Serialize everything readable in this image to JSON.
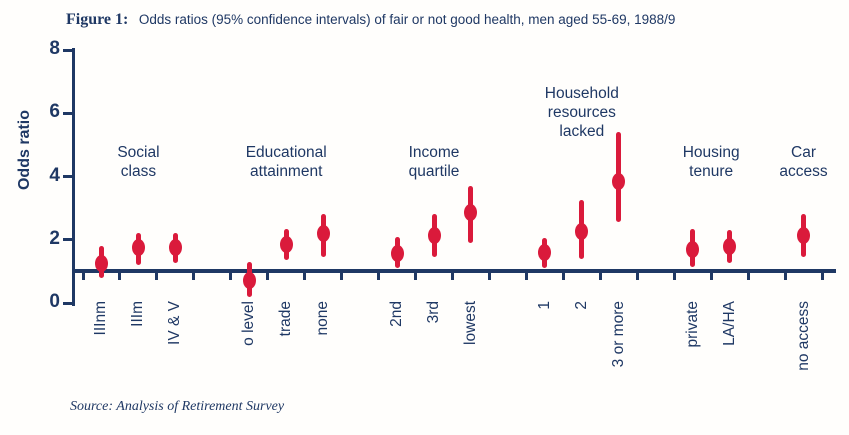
{
  "figure_label": "Figure 1:",
  "title": "Odds ratios (95% confidence intervals) of fair or not good health, men aged 55-69, 1988/9",
  "source": "Source: Analysis of Retirement Survey",
  "colors": {
    "navy": "#1f3864",
    "red": "#da1a3b"
  },
  "chart_data": {
    "type": "scatter",
    "subtype": "point-estimates-with-95pct-confidence-interval-bars",
    "title": "Odds ratios (95% confidence intervals) of fair or not good health, men aged 55-69, 1988/9",
    "ylabel": "Odds ratio",
    "ylim": [
      0,
      8
    ],
    "yticks": [
      0,
      2,
      4,
      6,
      8
    ],
    "reference_line": 1,
    "grid": false,
    "legend": "none",
    "groups": [
      {
        "label": "Social class",
        "points": [
          {
            "category": "IIInm",
            "odds_ratio": 1.25,
            "ci_low": 0.8,
            "ci_high": 1.8
          },
          {
            "category": "IIIm",
            "odds_ratio": 1.75,
            "ci_low": 1.2,
            "ci_high": 2.2
          },
          {
            "category": "IV & V",
            "odds_ratio": 1.75,
            "ci_low": 1.25,
            "ci_high": 2.2
          }
        ]
      },
      {
        "label": "Educational attainment",
        "points": [
          {
            "category": "o level",
            "odds_ratio": 0.7,
            "ci_low": 0.2,
            "ci_high": 1.3
          },
          {
            "category": "trade",
            "odds_ratio": 1.85,
            "ci_low": 1.35,
            "ci_high": 2.35
          },
          {
            "category": "none",
            "odds_ratio": 2.2,
            "ci_low": 1.45,
            "ci_high": 2.8
          }
        ]
      },
      {
        "label": "Income quartile",
        "points": [
          {
            "category": "2nd",
            "odds_ratio": 1.55,
            "ci_low": 1.1,
            "ci_high": 2.1
          },
          {
            "category": "3rd",
            "odds_ratio": 2.15,
            "ci_low": 1.45,
            "ci_high": 2.8
          },
          {
            "category": "lowest",
            "odds_ratio": 2.85,
            "ci_low": 1.9,
            "ci_high": 3.7
          }
        ]
      },
      {
        "label": "Household resources lacked",
        "points": [
          {
            "category": "1",
            "odds_ratio": 1.6,
            "ci_low": 1.1,
            "ci_high": 2.05
          },
          {
            "category": "2",
            "odds_ratio": 2.25,
            "ci_low": 1.4,
            "ci_high": 3.25
          },
          {
            "category": "3 or more",
            "odds_ratio": 3.85,
            "ci_low": 2.55,
            "ci_high": 5.4
          }
        ]
      },
      {
        "label": "Housing tenure",
        "points": [
          {
            "category": "private",
            "odds_ratio": 1.7,
            "ci_low": 1.15,
            "ci_high": 2.35
          },
          {
            "category": "LA/HA",
            "odds_ratio": 1.8,
            "ci_low": 1.25,
            "ci_high": 2.3
          }
        ]
      },
      {
        "label": "Car access",
        "points": [
          {
            "category": "no access",
            "odds_ratio": 2.15,
            "ci_low": 1.45,
            "ci_high": 2.8
          }
        ]
      }
    ]
  }
}
